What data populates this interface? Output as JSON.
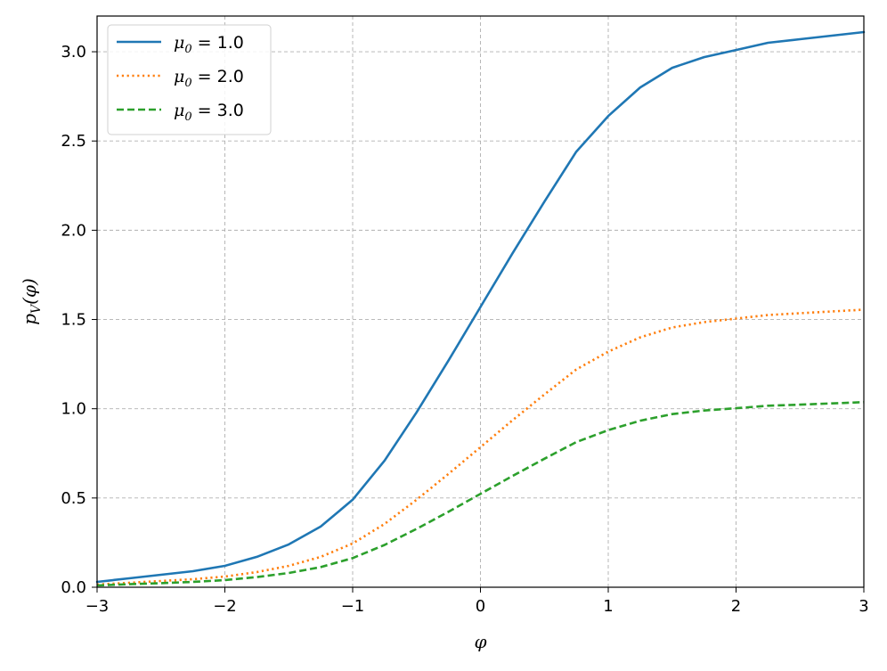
{
  "chart_data": {
    "type": "line",
    "title": "",
    "xlabel": "φ",
    "ylabel": "p_V(φ)",
    "xlim": [
      -3,
      3
    ],
    "ylim": [
      0,
      3.2
    ],
    "xticks": [
      -3,
      -2,
      -1,
      0,
      1,
      2,
      3
    ],
    "xtick_labels": [
      "−3",
      "−2",
      "−1",
      "0",
      "1",
      "2",
      "3"
    ],
    "yticks": [
      0,
      0.5,
      1.0,
      1.5,
      2.0,
      2.5,
      3.0
    ],
    "ytick_labels": [
      "0.0",
      "0.5",
      "1.0",
      "1.5",
      "2.0",
      "2.5",
      "3.0"
    ],
    "grid": true,
    "legend_position": "top-left",
    "x": [
      -3.0,
      -2.75,
      -2.5,
      -2.25,
      -2.0,
      -1.75,
      -1.5,
      -1.25,
      -1.0,
      -0.75,
      -0.5,
      -0.25,
      0.0,
      0.25,
      0.5,
      0.75,
      1.0,
      1.25,
      1.5,
      1.75,
      2.0,
      2.25,
      2.5,
      2.75,
      3.0
    ],
    "series": [
      {
        "name": "μ₀ = 1.0",
        "mu_text": "μ",
        "sub": "0",
        "val": " = 1.0",
        "color": "#1f77b4",
        "style": "solid",
        "values": [
          0.03,
          0.05,
          0.07,
          0.09,
          0.12,
          0.17,
          0.24,
          0.34,
          0.49,
          0.71,
          0.98,
          1.27,
          1.57,
          1.87,
          2.16,
          2.44,
          2.64,
          2.8,
          2.91,
          2.97,
          3.01,
          3.05,
          3.07,
          3.09,
          3.11
        ]
      },
      {
        "name": "μ₀ = 2.0",
        "mu_text": "μ",
        "sub": "0",
        "val": " = 2.0",
        "color": "#ff7f0e",
        "style": "dotted",
        "values": [
          0.015,
          0.025,
          0.035,
          0.045,
          0.06,
          0.085,
          0.12,
          0.17,
          0.245,
          0.355,
          0.49,
          0.635,
          0.785,
          0.935,
          1.08,
          1.22,
          1.32,
          1.4,
          1.455,
          1.485,
          1.505,
          1.525,
          1.535,
          1.545,
          1.555
        ]
      },
      {
        "name": "μ₀ = 3.0",
        "mu_text": "μ",
        "sub": "0",
        "val": " = 3.0",
        "color": "#2ca02c",
        "style": "dashed",
        "values": [
          0.01,
          0.017,
          0.023,
          0.03,
          0.04,
          0.057,
          0.08,
          0.113,
          0.163,
          0.237,
          0.327,
          0.423,
          0.523,
          0.623,
          0.72,
          0.813,
          0.88,
          0.933,
          0.97,
          0.99,
          1.003,
          1.017,
          1.023,
          1.03,
          1.037
        ]
      }
    ]
  }
}
